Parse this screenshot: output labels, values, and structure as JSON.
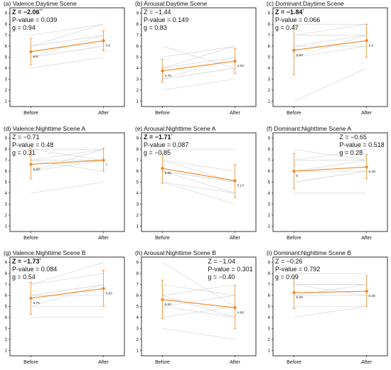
{
  "colors": {
    "mean": "#f08c2e",
    "error": "#f0a050",
    "individual": "#cfcfcf"
  },
  "chart_data": [
    {
      "type": "line",
      "title": "(a) Valence:Daytime Scene",
      "categories": [
        "Before",
        "After"
      ],
      "ylim": [
        0.5,
        9.5
      ],
      "yticks": [
        1,
        2,
        3,
        4,
        5,
        6,
        7,
        8,
        9
      ],
      "stats": {
        "z": "Z = −2.06",
        "z_sig": "**",
        "z_bold": true,
        "p": "P-value = 0.039",
        "g": "g = 0.94",
        "align": "left"
      },
      "mean": [
        5.5,
        6.5
      ],
      "mean_labels": [
        "5.5",
        "6.5"
      ],
      "error": [
        [
          4.3,
          6.7
        ],
        [
          5.6,
          7.4
        ]
      ],
      "individuals": [
        [
          7,
          8
        ],
        [
          6,
          8
        ],
        [
          6,
          7
        ],
        [
          6,
          7
        ],
        [
          5,
          7
        ],
        [
          5,
          6
        ],
        [
          5,
          6
        ],
        [
          4,
          5
        ]
      ]
    },
    {
      "type": "line",
      "title": "(b) Arousal:Daytime Scene",
      "categories": [
        "Before",
        "After"
      ],
      "ylim": [
        0.5,
        9.5
      ],
      "yticks": [
        1,
        2,
        3,
        4,
        5,
        6,
        7,
        8,
        9
      ],
      "stats": {
        "z": "Z = −1.44",
        "z_sig": "",
        "z_bold": false,
        "p": "P-value = 0.149",
        "g": "g = 0.83",
        "align": "left"
      },
      "mean": [
        3.75,
        4.63
      ],
      "mean_labels": [
        "3.75",
        "4.63"
      ],
      "error": [
        [
          2.7,
          4.8
        ],
        [
          3.5,
          5.8
        ]
      ],
      "individuals": [
        [
          6,
          4
        ],
        [
          5,
          6
        ],
        [
          4,
          6
        ],
        [
          4,
          5
        ],
        [
          3,
          4
        ],
        [
          3,
          5
        ],
        [
          3,
          4
        ],
        [
          2,
          3
        ]
      ]
    },
    {
      "type": "line",
      "title": "(c) Dominant:Daytime Scene",
      "categories": [
        "Before",
        "After"
      ],
      "ylim": [
        0.5,
        9.5
      ],
      "yticks": [
        1,
        2,
        3,
        4,
        5,
        6,
        7,
        8,
        9
      ],
      "stats": {
        "z": "Z = −1.84",
        "z_sig": "*",
        "z_bold": true,
        "p": "P-value = 0.066",
        "g": "g = 0.47",
        "align": "left"
      },
      "mean": [
        5.63,
        6.5
      ],
      "mean_labels": [
        "5.63",
        "6.5"
      ],
      "error": [
        [
          3.4,
          7.9
        ],
        [
          5.0,
          8.0
        ]
      ],
      "individuals": [
        [
          8,
          8
        ],
        [
          7,
          8
        ],
        [
          7,
          7
        ],
        [
          6,
          7
        ],
        [
          6,
          6
        ],
        [
          5,
          7
        ],
        [
          5,
          6
        ],
        [
          1,
          4
        ]
      ]
    },
    {
      "type": "line",
      "title": "(d) Valence:Nighttime Scene A",
      "categories": [
        "Before",
        "After"
      ],
      "ylim": [
        0.5,
        9.5
      ],
      "yticks": [
        1,
        2,
        3,
        4,
        5,
        6,
        7,
        8,
        9
      ],
      "stats": {
        "z": "Z = −0.71",
        "z_sig": "",
        "z_bold": false,
        "p": "P-value = 0.48",
        "g": "g = 0.31",
        "align": "left"
      },
      "mean": [
        6.63,
        7
      ],
      "mean_labels": [
        "6.63",
        "7"
      ],
      "error": [
        [
          5.3,
          8.1
        ],
        [
          6.0,
          8.1
        ]
      ],
      "individuals": [
        [
          8,
          8
        ],
        [
          8,
          7
        ],
        [
          7,
          8
        ],
        [
          7,
          7
        ],
        [
          7,
          6
        ],
        [
          6,
          8
        ],
        [
          6,
          7
        ],
        [
          4,
          5
        ]
      ]
    },
    {
      "type": "line",
      "title": "(e) Arousal:Nighttime Scene A",
      "categories": [
        "Before",
        "After"
      ],
      "ylim": [
        0.5,
        9.5
      ],
      "yticks": [
        1,
        2,
        3,
        4,
        5,
        6,
        7,
        8,
        9
      ],
      "stats": {
        "z": "Z = −1.71",
        "z_sig": "*",
        "z_bold": true,
        "p": "P-value = 0.087",
        "g": "g = −0.85",
        "align": "left"
      },
      "mean": [
        6.25,
        5.13
      ],
      "mean_labels": [
        "6.25",
        "5.13"
      ],
      "error": [
        [
          4.9,
          7.6
        ],
        [
          3.6,
          6.6
        ]
      ],
      "individuals": [
        [
          8,
          8
        ],
        [
          7,
          6
        ],
        [
          7,
          5
        ],
        [
          6,
          5
        ],
        [
          6,
          4
        ],
        [
          6,
          5
        ],
        [
          5,
          4
        ],
        [
          5,
          3
        ]
      ]
    },
    {
      "type": "line",
      "title": "(f) Dominant:Nighttime Scene A",
      "categories": [
        "Before",
        "After"
      ],
      "ylim": [
        0.5,
        9.5
      ],
      "yticks": [
        1,
        2,
        3,
        4,
        5,
        6,
        7,
        8,
        9
      ],
      "stats": {
        "z": "Z = −0.65",
        "z_sig": "",
        "z_bold": false,
        "p": "P-value = 0.518",
        "g": "g = 0.28",
        "align": "right"
      },
      "mean": [
        6,
        6.38
      ],
      "mean_labels": [
        "6",
        "6.38"
      ],
      "error": [
        [
          4.4,
          7.6
        ],
        [
          5.3,
          7.5
        ]
      ],
      "individuals": [
        [
          8,
          7
        ],
        [
          7,
          8
        ],
        [
          7,
          7
        ],
        [
          6,
          7
        ],
        [
          6,
          6
        ],
        [
          5,
          6
        ],
        [
          5,
          6
        ],
        [
          4,
          4
        ]
      ]
    },
    {
      "type": "line",
      "title": "(g) Valence:Nighttime Scene B",
      "categories": [
        "Before",
        "After"
      ],
      "ylim": [
        0.5,
        9.5
      ],
      "yticks": [
        1,
        2,
        3,
        4,
        5,
        6,
        7,
        8,
        9
      ],
      "stats": {
        "z": "Z = −1.73",
        "z_sig": "*",
        "z_bold": true,
        "p": "P-value = 0.084",
        "g": "g = 0.54",
        "align": "left"
      },
      "mean": [
        5.75,
        6.63
      ],
      "mean_labels": [
        "5.75",
        "6.63"
      ],
      "error": [
        [
          4.3,
          7.2
        ],
        [
          5.0,
          8.3
        ]
      ],
      "individuals": [
        [
          7,
          9
        ],
        [
          7,
          8
        ],
        [
          6,
          7
        ],
        [
          6,
          7
        ],
        [
          6,
          6
        ],
        [
          5,
          7
        ],
        [
          5,
          5
        ],
        [
          4,
          4
        ]
      ]
    },
    {
      "type": "line",
      "title": "(h) Arousal:Nighttime Scene B",
      "categories": [
        "Before",
        "After"
      ],
      "ylim": [
        0.5,
        9.5
      ],
      "yticks": [
        1,
        2,
        3,
        4,
        5,
        6,
        7,
        8,
        9
      ],
      "stats": {
        "z": "Z = −1.04",
        "z_sig": "",
        "z_bold": false,
        "p": "P-value = 0.301",
        "g": "g = −0.40",
        "align": "right"
      },
      "mean": [
        5.63,
        4.88
      ],
      "mean_labels": [
        "5.63",
        "4.88"
      ],
      "error": [
        [
          3.9,
          7.4
        ],
        [
          3.0,
          6.9
        ]
      ],
      "individuals": [
        [
          9,
          5
        ],
        [
          7,
          6
        ],
        [
          6,
          7
        ],
        [
          6,
          4
        ],
        [
          5,
          6
        ],
        [
          5,
          4
        ],
        [
          4,
          5
        ],
        [
          3,
          2
        ]
      ]
    },
    {
      "type": "line",
      "title": "(i) Dominant:Nighttime Scene B",
      "categories": [
        "Before",
        "After"
      ],
      "ylim": [
        0.5,
        9.5
      ],
      "yticks": [
        1,
        2,
        3,
        4,
        5,
        6,
        7,
        8,
        9
      ],
      "stats": {
        "z": "Z = −0.26",
        "z_sig": "",
        "z_bold": false,
        "p": "P-value = 0.792",
        "g": "g = 0.09",
        "align": "left"
      },
      "mean": [
        6.25,
        6.38
      ],
      "mean_labels": [
        "6.25",
        "6.38"
      ],
      "error": [
        [
          4.8,
          7.7
        ],
        [
          5.0,
          7.8
        ]
      ],
      "individuals": [
        [
          8,
          8
        ],
        [
          7,
          7
        ],
        [
          7,
          6
        ],
        [
          7,
          7
        ],
        [
          6,
          6
        ],
        [
          6,
          7
        ],
        [
          5,
          5
        ],
        [
          4,
          5
        ]
      ]
    }
  ]
}
